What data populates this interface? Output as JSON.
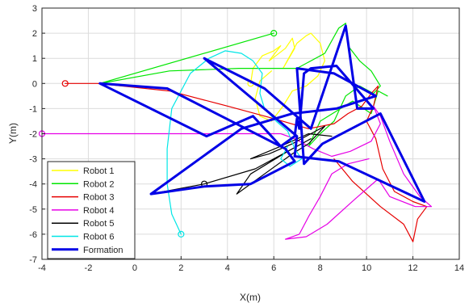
{
  "chart_data": {
    "type": "line",
    "title": "",
    "xlabel": "X(m)",
    "ylabel": "Y(m)",
    "xlim": [
      -4,
      14
    ],
    "ylim": [
      -7,
      3
    ],
    "xticks": [
      -4,
      -2,
      0,
      2,
      4,
      6,
      8,
      10,
      12,
      14
    ],
    "yticks": [
      -7,
      -6,
      -5,
      -4,
      -3,
      -2,
      -1,
      0,
      1,
      2,
      3
    ],
    "grid": true,
    "legend_position": "bottom-left",
    "series": [
      {
        "name": "Robot 1",
        "color": "#ffff00",
        "start_marker": [
          5.0,
          0.0
        ],
        "points": [
          [
            5.0,
            0.0
          ],
          [
            5.1,
            0.6
          ],
          [
            5.5,
            1.1
          ],
          [
            6.0,
            1.3
          ],
          [
            6.3,
            1.5
          ],
          [
            5.8,
            0.9
          ],
          [
            6.5,
            1.4
          ],
          [
            6.8,
            1.8
          ],
          [
            6.9,
            1.4
          ],
          [
            6.4,
            0.6
          ],
          [
            7.0,
            1.6
          ],
          [
            7.4,
            1.9
          ],
          [
            7.6,
            2.0
          ],
          [
            8.0,
            1.6
          ],
          [
            8.2,
            0.9
          ],
          [
            7.9,
            0.3
          ],
          [
            7.4,
            -0.1
          ],
          [
            6.8,
            -0.3
          ],
          [
            6.4,
            -0.9
          ],
          [
            5.9,
            -1.5
          ],
          [
            5.4,
            -1.3
          ],
          [
            5.2,
            -0.6
          ],
          [
            5.4,
            0.1
          ],
          [
            5.9,
            0.5
          ]
        ]
      },
      {
        "name": "Robot 2",
        "color": "#00e600",
        "start_marker": [
          6.0,
          2.0
        ],
        "points": [
          [
            6.0,
            2.0
          ],
          [
            -1.5,
            0.0
          ],
          [
            1.5,
            0.5
          ],
          [
            4.5,
            0.6
          ],
          [
            7.0,
            0.6
          ],
          [
            8.2,
            1.2
          ],
          [
            8.8,
            2.2
          ],
          [
            9.1,
            2.4
          ],
          [
            9.2,
            1.5
          ],
          [
            9.7,
            0.9
          ],
          [
            10.2,
            0.5
          ],
          [
            10.6,
            -0.1
          ],
          [
            10.3,
            -0.4
          ],
          [
            9.7,
            -0.1
          ],
          [
            9.1,
            -0.5
          ],
          [
            8.6,
            -1.5
          ],
          [
            8.0,
            -2.0
          ],
          [
            7.5,
            -2.5
          ],
          [
            8.0,
            -1.5
          ],
          [
            9.4,
            -0.7
          ],
          [
            10.2,
            -1.2
          ],
          [
            10.5,
            -0.3
          ],
          [
            10.9,
            -0.5
          ]
        ]
      },
      {
        "name": "Robot 3",
        "color": "#e60000",
        "start_marker": [
          -3.0,
          0.0
        ],
        "points": [
          [
            -3.0,
            0.0
          ],
          [
            -1.6,
            0.0
          ],
          [
            1.5,
            -0.3
          ],
          [
            4.0,
            -0.9
          ],
          [
            6.0,
            -1.4
          ],
          [
            7.5,
            -1.8
          ],
          [
            8.6,
            -1.6
          ],
          [
            9.2,
            -1.2
          ],
          [
            9.8,
            -0.9
          ],
          [
            10.2,
            -0.4
          ],
          [
            10.5,
            -0.1
          ],
          [
            10.3,
            -0.9
          ],
          [
            10.0,
            -1.5
          ],
          [
            10.4,
            -2.2
          ],
          [
            10.7,
            -3.4
          ],
          [
            11.2,
            -4.3
          ],
          [
            12.0,
            -4.7
          ],
          [
            12.6,
            -4.9
          ],
          [
            12.2,
            -5.4
          ],
          [
            12.0,
            -6.3
          ],
          [
            11.6,
            -5.6
          ],
          [
            10.6,
            -4.9
          ],
          [
            9.4,
            -3.9
          ],
          [
            8.6,
            -3.0
          ]
        ]
      },
      {
        "name": "Robot 4",
        "color": "#e600e6",
        "start_marker": [
          -4.0,
          -2.0
        ],
        "points": [
          [
            -4.0,
            -2.0
          ],
          [
            6.3,
            -2.0
          ],
          [
            6.9,
            -2.2
          ],
          [
            7.7,
            -2.6
          ],
          [
            8.5,
            -2.9
          ],
          [
            9.3,
            -2.7
          ],
          [
            10.2,
            -2.3
          ],
          [
            10.6,
            -1.6
          ],
          [
            10.3,
            -0.9
          ],
          [
            10.6,
            -1.3
          ],
          [
            11.0,
            -2.3
          ],
          [
            11.6,
            -3.6
          ],
          [
            12.3,
            -4.5
          ],
          [
            12.8,
            -4.9
          ],
          [
            12.1,
            -4.9
          ],
          [
            11.0,
            -4.5
          ],
          [
            10.5,
            -3.8
          ],
          [
            9.5,
            -4.6
          ],
          [
            8.3,
            -5.6
          ],
          [
            7.4,
            -6.1
          ],
          [
            6.5,
            -6.2
          ],
          [
            7.1,
            -6.0
          ],
          [
            7.5,
            -5.3
          ],
          [
            8.0,
            -4.5
          ],
          [
            8.5,
            -3.6
          ],
          [
            9.2,
            -3.2
          ],
          [
            10.1,
            -3.0
          ]
        ]
      },
      {
        "name": "Robot 5",
        "color": "#000000",
        "start_marker": [
          3.0,
          -4.0
        ],
        "points": [
          [
            3.0,
            -4.0
          ],
          [
            0.7,
            -4.4
          ],
          [
            3.0,
            -4.0
          ],
          [
            5.2,
            -3.4
          ],
          [
            6.8,
            -2.6
          ],
          [
            7.6,
            -2.2
          ],
          [
            6.6,
            -2.7
          ],
          [
            5.0,
            -3.6
          ],
          [
            4.4,
            -4.4
          ],
          [
            5.6,
            -3.6
          ],
          [
            6.8,
            -2.8
          ],
          [
            7.5,
            -2.4
          ],
          [
            8.2,
            -1.7
          ],
          [
            6.8,
            -2.4
          ],
          [
            5.8,
            -2.8
          ],
          [
            5.0,
            -3.0
          ],
          [
            6.3,
            -2.5
          ],
          [
            7.5,
            -2.0
          ],
          [
            8.5,
            -2.1
          ]
        ]
      },
      {
        "name": "Robot 6",
        "color": "#00e6e6",
        "start_marker": [
          2.0,
          -6.0
        ],
        "points": [
          [
            2.0,
            -6.0
          ],
          [
            1.6,
            -5.2
          ],
          [
            1.4,
            -4.0
          ],
          [
            1.4,
            -2.6
          ],
          [
            1.6,
            -1.0
          ],
          [
            2.4,
            0.4
          ],
          [
            3.2,
            1.0
          ],
          [
            3.9,
            1.3
          ],
          [
            4.6,
            1.2
          ],
          [
            5.1,
            0.9
          ],
          [
            5.5,
            0.4
          ],
          [
            5.4,
            -0.4
          ],
          [
            5.6,
            -1.0
          ],
          [
            6.1,
            -1.5
          ],
          [
            6.6,
            -1.9
          ],
          [
            6.9,
            -2.6
          ],
          [
            7.2,
            -3.0
          ],
          [
            6.7,
            -3.3
          ],
          [
            6.3,
            -3.0
          ],
          [
            6.6,
            -2.5
          ]
        ]
      },
      {
        "name": "Formation",
        "color": "#0000e6",
        "points": [
          [
            -1.5,
            0.0
          ],
          [
            1.4,
            -0.2
          ],
          [
            4.8,
            -1.8
          ],
          [
            6.5,
            -2.6
          ],
          [
            6.9,
            -3.1
          ],
          [
            5.0,
            -4.0
          ],
          [
            3.0,
            -4.1
          ],
          [
            0.7,
            -4.4
          ],
          [
            4.6,
            -1.8
          ],
          [
            6.8,
            -1.2
          ],
          [
            8.7,
            -1.0
          ],
          [
            10.4,
            -0.5
          ],
          [
            8.6,
            0.4
          ],
          [
            7.0,
            0.6
          ],
          [
            7.3,
            -3.2
          ],
          [
            8.1,
            -2.4
          ],
          [
            10.6,
            -1.2
          ],
          [
            12.5,
            -4.7
          ],
          [
            8.8,
            -3.1
          ],
          [
            6.9,
            -2.9
          ],
          [
            7.0,
            -2.1
          ],
          [
            6.1,
            -1.4
          ],
          [
            3.0,
            1.0
          ],
          [
            5.6,
            -0.2
          ],
          [
            7.6,
            -1.8
          ],
          [
            9.1,
            2.3
          ],
          [
            9.6,
            -1.0
          ],
          [
            10.3,
            -1.0
          ],
          [
            8.7,
            0.7
          ],
          [
            7.6,
            0.6
          ],
          [
            7.3,
            0.4
          ],
          [
            7.1,
            -1.8
          ],
          [
            7.0,
            -1.4
          ],
          [
            6.9,
            -2.1
          ],
          [
            6.3,
            -2.5
          ],
          [
            5.1,
            -1.3
          ],
          [
            3.1,
            -2.1
          ],
          [
            -1.5,
            0.0
          ]
        ]
      }
    ]
  }
}
